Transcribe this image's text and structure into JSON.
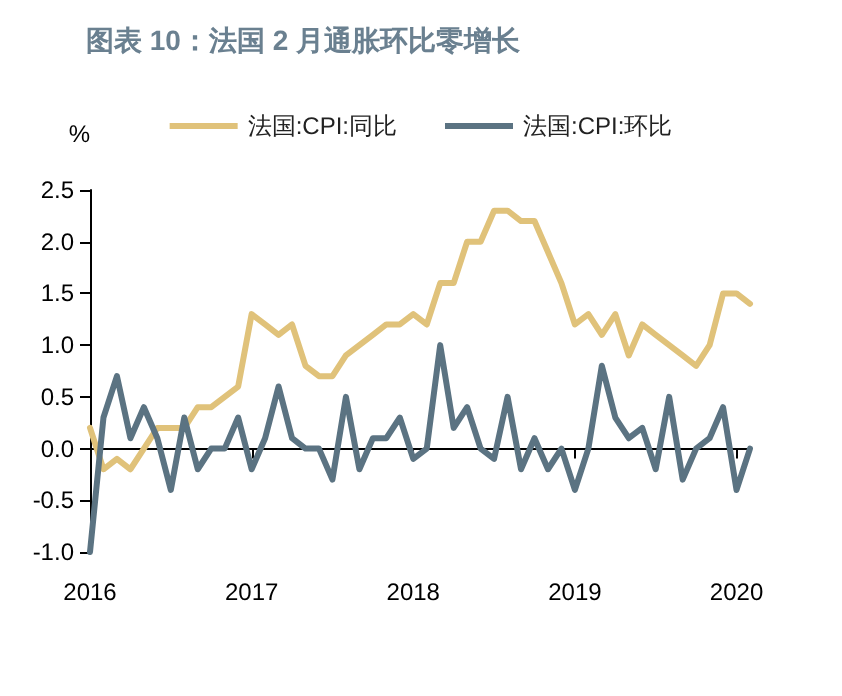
{
  "chart_data": {
    "type": "line",
    "title": "图表 10：法国 2 月通胀环比零增长",
    "ylabel": "%",
    "categories": [
      "2016",
      null,
      null,
      null,
      null,
      null,
      null,
      null,
      null,
      null,
      null,
      null,
      "2017",
      null,
      null,
      null,
      null,
      null,
      null,
      null,
      null,
      null,
      null,
      null,
      "2018",
      null,
      null,
      null,
      null,
      null,
      null,
      null,
      null,
      null,
      null,
      null,
      "2019",
      null,
      null,
      null,
      null,
      null,
      null,
      null,
      null,
      null,
      null,
      null,
      "2020",
      null
    ],
    "series": [
      {
        "name": "法国:CPI:同比",
        "color": "#e0c27a",
        "values": [
          0.2,
          -0.2,
          -0.1,
          -0.2,
          0.0,
          0.2,
          0.2,
          0.2,
          0.4,
          0.4,
          0.5,
          0.6,
          1.3,
          1.2,
          1.1,
          1.2,
          0.8,
          0.7,
          0.7,
          0.9,
          1.0,
          1.1,
          1.2,
          1.2,
          1.3,
          1.2,
          1.6,
          1.6,
          2.0,
          2.0,
          2.3,
          2.3,
          2.2,
          2.2,
          1.9,
          1.6,
          1.2,
          1.3,
          1.1,
          1.3,
          0.9,
          1.2,
          1.1,
          1.0,
          0.9,
          0.8,
          1.0,
          1.5,
          1.5,
          1.4
        ]
      },
      {
        "name": "法国:CPI:环比",
        "color": "#5b7382",
        "values": [
          -1.0,
          0.3,
          0.7,
          0.1,
          0.4,
          0.1,
          -0.4,
          0.3,
          -0.2,
          0.0,
          0.0,
          0.3,
          -0.2,
          0.1,
          0.6,
          0.1,
          0.0,
          0.0,
          -0.3,
          0.5,
          -0.2,
          0.1,
          0.1,
          0.3,
          -0.1,
          0.0,
          1.0,
          0.2,
          0.4,
          0.0,
          -0.1,
          0.5,
          -0.2,
          0.1,
          -0.2,
          0.0,
          -0.4,
          0.0,
          0.8,
          0.3,
          0.1,
          0.2,
          -0.2,
          0.5,
          -0.3,
          0.0,
          0.1,
          0.4,
          -0.4,
          0.0
        ]
      }
    ],
    "ylim": [
      -1.0,
      2.5
    ],
    "yticks": [
      {
        "value": -1.0,
        "label": "-1.0"
      },
      {
        "value": -0.5,
        "label": "-0.5"
      },
      {
        "value": 0,
        "label": "0.0"
      },
      {
        "value": 0.5,
        "label": "0.5"
      },
      {
        "value": 1.0,
        "label": "1.0"
      },
      {
        "value": 1.5,
        "label": "1.5"
      },
      {
        "value": 2.0,
        "label": "2.0"
      },
      {
        "value": 2.5,
        "label": "2.5"
      }
    ],
    "legend": "top",
    "line_style": "solid"
  }
}
